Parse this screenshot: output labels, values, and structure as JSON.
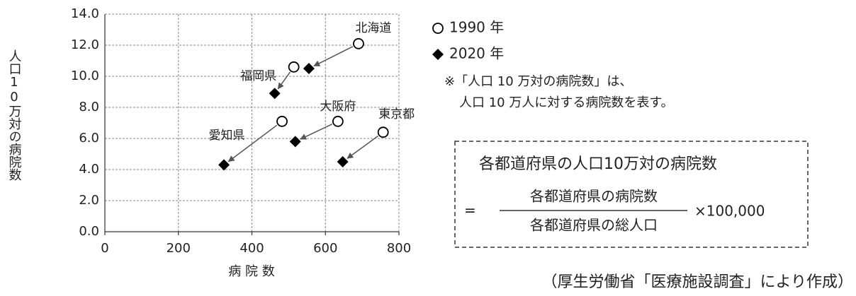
{
  "chart_data": {
    "type": "scatter",
    "categories": [
      "北海道",
      "福岡県",
      "愛知県",
      "大阪府",
      "東京都"
    ],
    "series": [
      {
        "name": "1990 年",
        "marker": "open-circle",
        "color": "#000000",
        "x": [
          690,
          514,
          482,
          634,
          757
        ],
        "values": [
          12.1,
          10.6,
          7.1,
          7.1,
          6.4
        ]
      },
      {
        "name": "2020 年",
        "marker": "diamond",
        "color": "#000000",
        "x": [
          555,
          462,
          324,
          518,
          647
        ],
        "values": [
          10.5,
          8.9,
          4.3,
          5.8,
          4.5
        ]
      }
    ],
    "arrow_color": "#555555",
    "xlabel": "病 院 数",
    "ylabel": "人口10万対の病院数",
    "xlim": [
      0,
      800
    ],
    "xticks": [
      0,
      200,
      400,
      600,
      800
    ],
    "ylim": [
      0,
      14
    ],
    "yticks": [
      {
        "value": 0,
        "label": "0.0"
      },
      {
        "value": 2,
        "label": "2.0"
      },
      {
        "value": 4,
        "label": "4.0"
      },
      {
        "value": 6,
        "label": "6.0"
      },
      {
        "value": 8,
        "label": "8.0"
      },
      {
        "value": 10,
        "label": "10.0"
      },
      {
        "value": 12,
        "label": "12.0"
      },
      {
        "value": 14,
        "label": "14.0"
      }
    ],
    "grid": true,
    "notes": [
      "※「人口 10 万対の病院数」は、",
      "人口 10 万人に対する病院数を表す。"
    ],
    "formula": {
      "title": "各都道府県の人口10万対の病院数",
      "equals": "=",
      "numerator": "各都道府県の病院数",
      "denominator": "各都道府県の総人口",
      "multiplier": "×100,000"
    },
    "source": "（厚生労働省「医療施設調査」により作成）"
  }
}
